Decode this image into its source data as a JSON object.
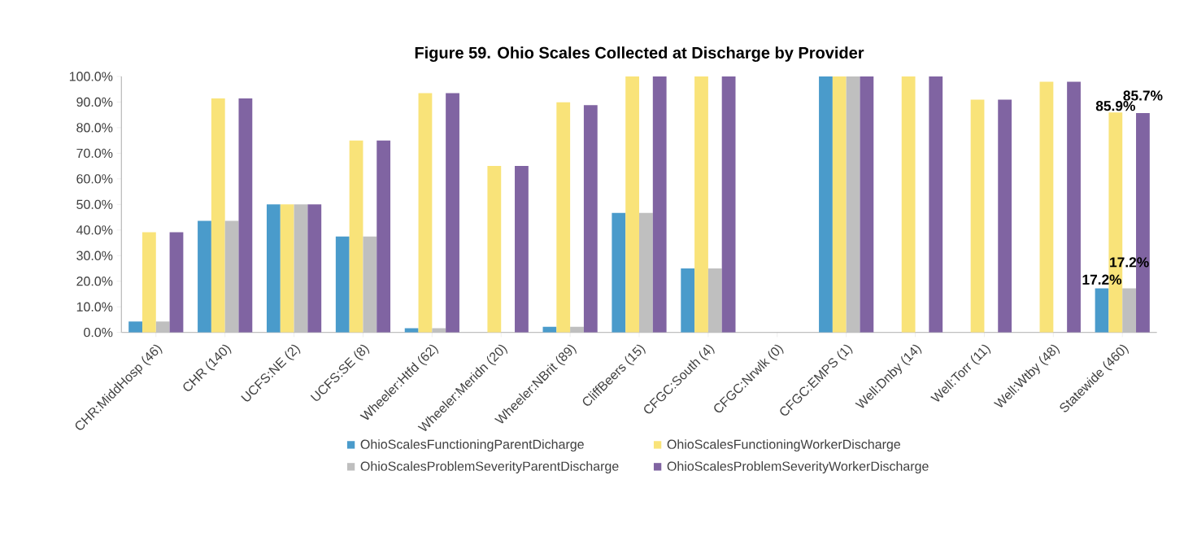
{
  "chart_data": {
    "type": "bar",
    "title": "Figure 59. Ohio Scales Collected at Discharge by Provider",
    "categories": [
      "CHR:MiddHosp (46)",
      "CHR (140)",
      "UCFS:NE (2)",
      "UCFS:SE (8)",
      "Wheeler:Htfd (62)",
      "Wheeler:Meridn (20)",
      "Wheeler:NBrit (89)",
      "CliffBeers (15)",
      "CFGC:South (4)",
      "CFGC:Nrwlk (0)",
      "CFGC:EMPS (1)",
      "Well:Dnby (14)",
      "Well:Torr (11)",
      "Well:Wtby (48)",
      "Statewide (460)"
    ],
    "series": [
      {
        "name": "OhioScalesFunctioningParentDicharge",
        "color": "#4a9bcb",
        "values": [
          4.3,
          43.6,
          50,
          37.5,
          1.6,
          0,
          2.2,
          46.7,
          25,
          0,
          100,
          0,
          0,
          0,
          17.2
        ],
        "value_labels": [
          null,
          null,
          null,
          null,
          null,
          null,
          null,
          null,
          null,
          null,
          null,
          null,
          null,
          null,
          "17.2%"
        ]
      },
      {
        "name": "OhioScalesFunctioningWorkerDischarge",
        "color": "#f9e379",
        "values": [
          39.1,
          91.4,
          50,
          75,
          93.5,
          65,
          89.9,
          100,
          100,
          0,
          100,
          100,
          90.9,
          97.9,
          85.9
        ],
        "value_labels": [
          null,
          null,
          null,
          null,
          null,
          null,
          null,
          null,
          null,
          null,
          null,
          null,
          null,
          null,
          "85.9%"
        ]
      },
      {
        "name": "OhioScalesProblemSeverityParentDischarge",
        "color": "#bfbfbf",
        "values": [
          4.3,
          43.6,
          50,
          37.5,
          1.6,
          0,
          2.2,
          46.7,
          25,
          0,
          100,
          0,
          0,
          0,
          17.2
        ],
        "value_labels": [
          null,
          null,
          null,
          null,
          null,
          null,
          null,
          null,
          null,
          null,
          null,
          null,
          null,
          null,
          "17.2%"
        ]
      },
      {
        "name": "OhioScalesProblemSeverityWorkerDischarge",
        "color": "#8064a2",
        "values": [
          39.1,
          91.4,
          50,
          75,
          93.5,
          65,
          88.8,
          100,
          100,
          0,
          100,
          100,
          90.9,
          97.9,
          85.7
        ],
        "value_labels": [
          null,
          null,
          null,
          null,
          null,
          null,
          null,
          null,
          null,
          null,
          null,
          null,
          null,
          null,
          "85.7%"
        ]
      }
    ],
    "ylim": [
      0,
      100
    ],
    "yticks": [
      {
        "value": 0,
        "label": "0.0%"
      },
      {
        "value": 10,
        "label": "10.0%"
      },
      {
        "value": 20,
        "label": "20.0%"
      },
      {
        "value": 30,
        "label": "30.0%"
      },
      {
        "value": 40,
        "label": "40.0%"
      },
      {
        "value": 50,
        "label": "50.0%"
      },
      {
        "value": 60,
        "label": "60.0%"
      },
      {
        "value": 70,
        "label": "70.0%"
      },
      {
        "value": 80,
        "label": "80.0%"
      },
      {
        "value": 90,
        "label": "90.0%"
      },
      {
        "value": 100,
        "label": "100.0%"
      }
    ],
    "legend": "bottom"
  }
}
